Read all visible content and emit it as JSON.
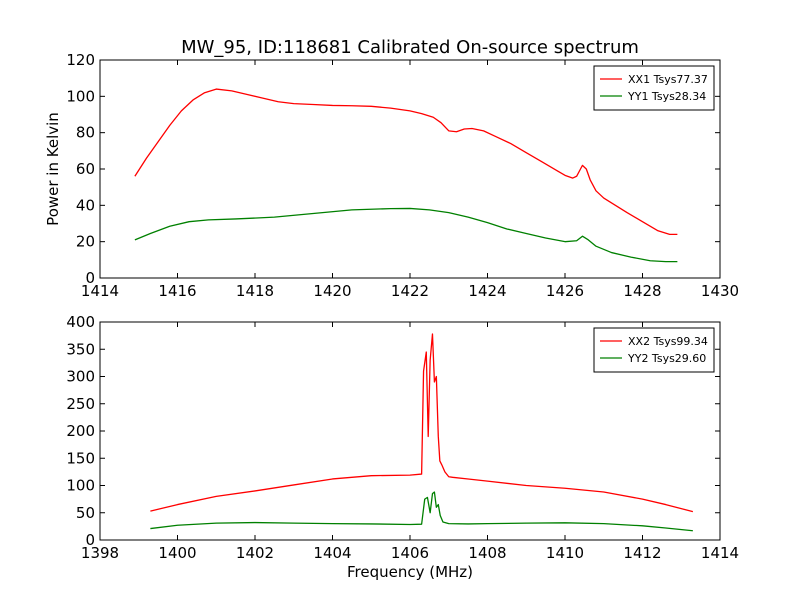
{
  "figure": {
    "title": "MW_95, ID:118681 Calibrated On-source spectrum",
    "shared_xlabel": "Frequency (MHz)"
  },
  "chart_data": [
    {
      "type": "line",
      "title": "MW_95, ID:118681 Calibrated On-source spectrum",
      "xlabel": "",
      "ylabel": "Power in Kelvin",
      "xlim": [
        1414,
        1430
      ],
      "ylim": [
        0,
        120
      ],
      "xticks": [
        1414,
        1416,
        1418,
        1420,
        1422,
        1424,
        1426,
        1428,
        1430
      ],
      "yticks": [
        0,
        20,
        40,
        60,
        80,
        100,
        120
      ],
      "grid": false,
      "legend_position": "top-right",
      "series": [
        {
          "name": "XX1 Tsys77.37",
          "color": "#ff0000",
          "x": [
            1414.9,
            1415.2,
            1415.5,
            1415.8,
            1416.1,
            1416.4,
            1416.7,
            1417.0,
            1417.4,
            1417.8,
            1418.2,
            1418.6,
            1419.0,
            1419.5,
            1420.0,
            1420.5,
            1421.0,
            1421.5,
            1422.0,
            1422.3,
            1422.6,
            1422.8,
            1423.0,
            1423.2,
            1423.4,
            1423.6,
            1423.9,
            1424.2,
            1424.6,
            1425.0,
            1425.4,
            1425.8,
            1426.0,
            1426.2,
            1426.3,
            1426.4,
            1426.45,
            1426.55,
            1426.65,
            1426.8,
            1427.0,
            1427.3,
            1427.6,
            1428.0,
            1428.4,
            1428.7,
            1428.9
          ],
          "y": [
            56,
            66,
            75,
            84,
            92,
            98,
            102,
            104,
            103,
            101,
            99,
            97,
            96,
            95.5,
            95,
            94.8,
            94.5,
            93.5,
            92,
            90.5,
            88.5,
            85.5,
            81,
            80.5,
            82,
            82.3,
            81,
            78,
            74,
            69,
            64,
            59,
            56.5,
            55,
            56,
            60,
            62,
            60,
            54,
            48,
            44,
            40,
            36,
            31,
            26,
            24,
            24
          ]
        },
        {
          "name": "YY1 Tsys28.34",
          "color": "#008000",
          "x": [
            1414.9,
            1415.3,
            1415.8,
            1416.3,
            1416.8,
            1417.5,
            1418.5,
            1419.5,
            1420.5,
            1421.5,
            1422.0,
            1422.5,
            1423.0,
            1423.5,
            1424.0,
            1424.5,
            1425.0,
            1425.5,
            1426.0,
            1426.3,
            1426.45,
            1426.6,
            1426.8,
            1427.2,
            1427.7,
            1428.2,
            1428.6,
            1428.9
          ],
          "y": [
            21,
            24.5,
            28.5,
            31,
            32,
            32.5,
            33.5,
            35.5,
            37.5,
            38.2,
            38.3,
            37.5,
            36,
            33.5,
            30.5,
            27,
            24.5,
            22,
            20,
            20.5,
            23,
            21,
            17.5,
            14,
            11.5,
            9.5,
            9,
            9
          ]
        }
      ]
    },
    {
      "type": "line",
      "title": "",
      "xlabel": "Frequency (MHz)",
      "ylabel": "",
      "xlim": [
        1398,
        1414
      ],
      "ylim": [
        0,
        400
      ],
      "xticks": [
        1398,
        1400,
        1402,
        1404,
        1406,
        1408,
        1410,
        1412,
        1414
      ],
      "yticks": [
        0,
        50,
        100,
        150,
        200,
        250,
        300,
        350,
        400
      ],
      "grid": false,
      "legend_position": "top-right",
      "series": [
        {
          "name": "XX2 Tsys99.34",
          "color": "#ff0000",
          "x": [
            1399.3,
            1400.0,
            1401.0,
            1402.0,
            1403.0,
            1404.0,
            1405.0,
            1406.0,
            1406.3,
            1406.35,
            1406.42,
            1406.47,
            1406.52,
            1406.58,
            1406.63,
            1406.68,
            1406.73,
            1406.77,
            1406.82,
            1406.9,
            1407.0,
            1407.1,
            1407.5,
            1408.0,
            1409.0,
            1410.0,
            1411.0,
            1412.0,
            1412.6,
            1413.3
          ],
          "y": [
            53,
            65,
            80,
            90,
            101,
            112,
            118,
            119,
            121,
            310,
            345,
            190,
            330,
            378,
            290,
            300,
            190,
            145,
            138,
            125,
            116,
            115,
            112,
            108,
            100,
            95,
            88,
            75,
            65,
            52
          ],
          "markers": false
        },
        {
          "name": "YY2 Tsys29.60",
          "color": "#008000",
          "x": [
            1399.3,
            1400.0,
            1401.0,
            1402.0,
            1403.0,
            1404.0,
            1405.0,
            1406.0,
            1406.3,
            1406.38,
            1406.45,
            1406.52,
            1406.58,
            1406.63,
            1406.68,
            1406.73,
            1406.78,
            1406.85,
            1407.0,
            1407.5,
            1408.0,
            1409.0,
            1410.0,
            1411.0,
            1412.0,
            1412.6,
            1413.3
          ],
          "y": [
            21,
            27,
            31,
            32,
            31,
            30,
            29.5,
            28.5,
            29,
            75,
            78,
            50,
            85,
            88,
            60,
            65,
            45,
            33,
            30,
            29.5,
            30,
            31,
            31.5,
            30,
            26,
            22,
            17
          ]
        }
      ]
    }
  ]
}
